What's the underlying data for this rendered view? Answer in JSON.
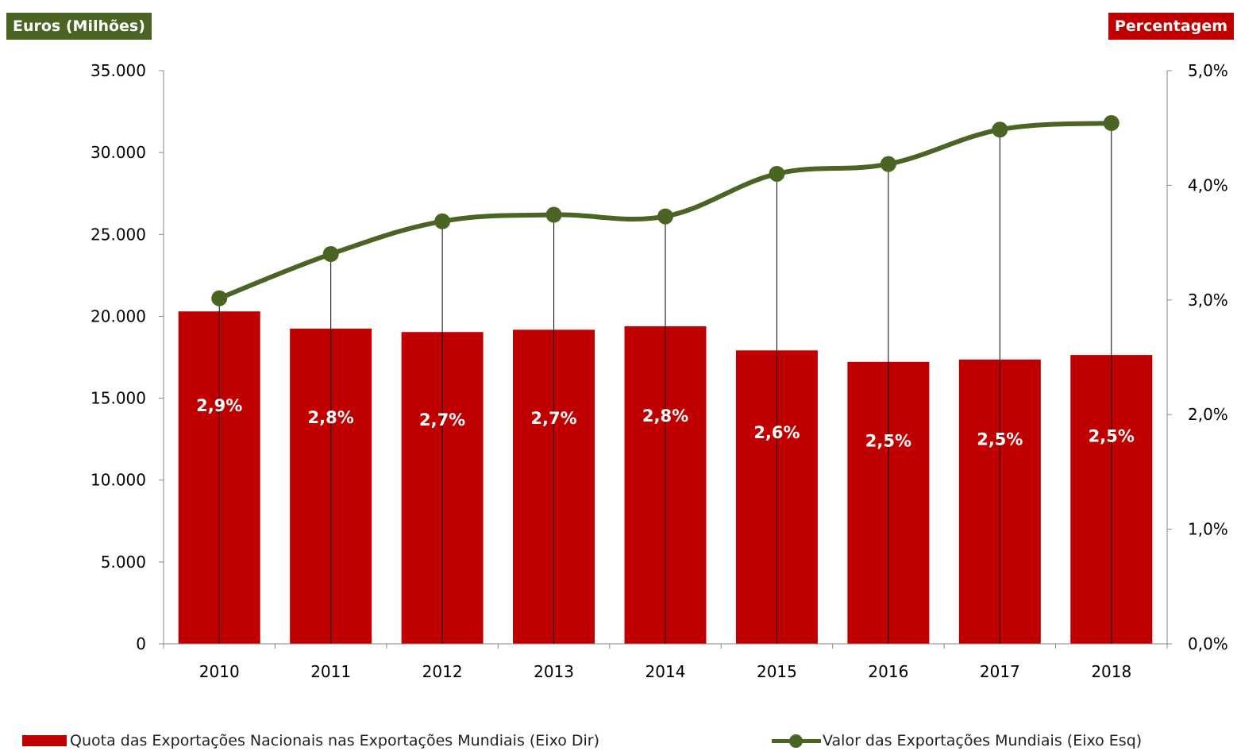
{
  "labels": {
    "left_axis_title": "Euros (Milhões)",
    "right_axis_title": "Percentagem"
  },
  "colors": {
    "bar": "#c00000",
    "line": "#4a6424",
    "left_badge": "#4a6424",
    "right_badge": "#c00000",
    "axis": "#888888",
    "drop_line": "#000000",
    "text": "#000000"
  },
  "legend": {
    "bars_label": "Quota das Exportações Nacionais nas Exportações Mundiais (Eixo Dir)",
    "line_label": "Valor das Exportações Mundiais  (Eixo Esq)"
  },
  "chart_data": {
    "type": "bar",
    "categories": [
      "2010",
      "2011",
      "2012",
      "2013",
      "2014",
      "2015",
      "2016",
      "2017",
      "2018"
    ],
    "series": [
      {
        "name": "Quota das Exportações Nacionais nas Exportações Mundiais (Eixo Dir)",
        "type": "bar",
        "axis": "right",
        "values": [
          2.9,
          2.75,
          2.72,
          2.74,
          2.77,
          2.56,
          2.46,
          2.48,
          2.52
        ],
        "data_labels": [
          "2,9%",
          "2,8%",
          "2,7%",
          "2,7%",
          "2,8%",
          "2,6%",
          "2,5%",
          "2,5%",
          "2,5%"
        ]
      },
      {
        "name": "Valor das Exportações Mundiais  (Eixo Esq)",
        "type": "line",
        "axis": "left",
        "values": [
          21100,
          23800,
          25800,
          26200,
          26100,
          28700,
          29300,
          31400,
          31800
        ]
      }
    ],
    "left_axis": {
      "ylim": [
        0,
        35000
      ],
      "ticks": [
        0,
        5000,
        10000,
        15000,
        20000,
        25000,
        30000,
        35000
      ],
      "tick_labels": [
        "0",
        "5.000",
        "10.000",
        "15.000",
        "20.000",
        "25.000",
        "30.000",
        "35.000"
      ]
    },
    "right_axis": {
      "ylim": [
        0,
        5
      ],
      "ticks": [
        0,
        1,
        2,
        3,
        4,
        5
      ],
      "tick_labels": [
        "0,0%",
        "1,0%",
        "2,0%",
        "3,0%",
        "4,0%",
        "5,0%"
      ]
    },
    "grid": false,
    "legend_position": "bottom"
  }
}
